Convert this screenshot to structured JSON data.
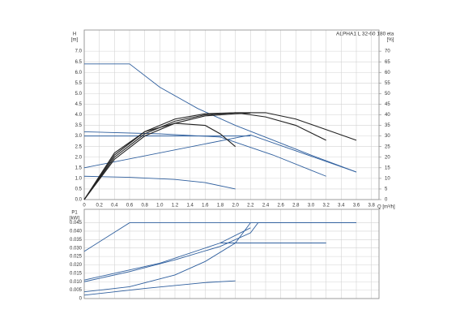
{
  "chart_data": [
    {
      "type": "line",
      "title": "ALPHA1 L 32-60 180",
      "y_label": "H",
      "y_unit": "[m]",
      "y2_label": "eta",
      "y2_unit": "[%]",
      "x_label": "Q [m³/h]",
      "xlim": [
        0,
        3.9
      ],
      "xticks": [
        {
          "value": 0,
          "label": "0"
        },
        0.2,
        0.4,
        0.6,
        0.8,
        {
          "value": 1,
          "label": "1.0"
        },
        1.2,
        1.4,
        1.6,
        1.8,
        {
          "value": 2,
          "label": "2.0"
        },
        2.2,
        2.4,
        2.6,
        2.8,
        {
          "value": 3,
          "label": "3.0"
        },
        3.2,
        3.4,
        3.6,
        3.8
      ],
      "ylim": [
        0,
        8
      ],
      "yticks": [
        {
          "value": 0,
          "label": "0.0"
        },
        0.5,
        {
          "value": 1,
          "label": "1.0"
        },
        1.5,
        {
          "value": 2,
          "label": "2.0"
        },
        2.5,
        {
          "value": 3,
          "label": "3.0"
        },
        3.5,
        {
          "value": 4,
          "label": "4.0"
        },
        4.5,
        {
          "value": 5,
          "label": "5.0"
        },
        5.5,
        {
          "value": 6,
          "label": "6.0"
        },
        6.5,
        {
          "value": 7,
          "label": "7.0"
        }
      ],
      "y2lim": [
        0,
        80
      ],
      "y2ticks": [
        0,
        5,
        10,
        15,
        20,
        25,
        30,
        35,
        40,
        45,
        50,
        55,
        60,
        65,
        70
      ],
      "grid": true,
      "series": [
        {
          "color": "#2f5f9e",
          "x": [
            0,
            0.6,
            1.0,
            1.5,
            2.0,
            2.5,
            3.0,
            3.6
          ],
          "values": [
            6.4,
            6.4,
            5.3,
            4.3,
            3.5,
            2.8,
            2.1,
            1.3
          ]
        },
        {
          "color": "#2f5f9e",
          "x": [
            0,
            1.0,
            1.8,
            2.5,
            3.2
          ],
          "values": [
            3.2,
            3.1,
            2.95,
            2.1,
            1.1
          ]
        },
        {
          "color": "#2f5f9e",
          "x": [
            0,
            2.2
          ],
          "values": [
            3.0,
            3.0
          ]
        },
        {
          "color": "#2f5f9e",
          "x": [
            0,
            2.2,
            3.6
          ],
          "values": [
            1.5,
            3.05,
            1.3
          ]
        },
        {
          "color": "#2f5f9e",
          "x": [
            0,
            0.6,
            1.2,
            1.6,
            2.0
          ],
          "values": [
            1.1,
            1.05,
            0.95,
            0.8,
            0.5
          ]
        },
        {
          "color": "#222222",
          "axis": "y2",
          "x": [
            0,
            0.4,
            0.8,
            1.2,
            1.6,
            2.0,
            2.4,
            2.8,
            3.2,
            3.6
          ],
          "values": [
            0,
            20,
            31,
            37,
            40,
            41,
            41,
            38,
            33,
            28
          ]
        },
        {
          "color": "#222222",
          "axis": "y2",
          "x": [
            0,
            0.4,
            0.8,
            1.2,
            1.6,
            2.0,
            2.4,
            2.8,
            3.2
          ],
          "values": [
            0,
            21,
            32,
            38,
            40.5,
            41,
            39,
            35,
            28
          ]
        },
        {
          "color": "#222222",
          "axis": "y2",
          "x": [
            0,
            0.4,
            0.8,
            1.2,
            1.6,
            2.0,
            2.2
          ],
          "values": [
            0,
            19,
            30,
            36,
            39.5,
            40.5,
            40.8
          ]
        },
        {
          "color": "#222222",
          "axis": "y2",
          "x": [
            0,
            0.4,
            0.8,
            1.2,
            1.6,
            1.8,
            2.0
          ],
          "values": [
            0,
            22,
            32,
            36,
            35,
            31,
            25
          ]
        }
      ]
    },
    {
      "type": "line",
      "y_label": "P1",
      "y_unit": "[kW]",
      "xlim": [
        0,
        3.9
      ],
      "ylim": [
        0,
        0.053
      ],
      "yticks": [
        0,
        0.005,
        {
          "value": 0.01,
          "label": "0.010"
        },
        0.015,
        {
          "value": 0.02,
          "label": "0.020"
        },
        0.025,
        {
          "value": 0.03,
          "label": "0.030"
        },
        0.035,
        {
          "value": 0.04,
          "label": "0.040"
        },
        0.045
      ],
      "grid": true,
      "series": [
        {
          "color": "#2f5f9e",
          "x": [
            0,
            0.6,
            3.6
          ],
          "values": [
            0.028,
            0.045,
            0.045
          ]
        },
        {
          "color": "#2f5f9e",
          "x": [
            0,
            0.6,
            1.2,
            1.8,
            2.2,
            2.3,
            3.6
          ],
          "values": [
            0.01,
            0.016,
            0.023,
            0.031,
            0.039,
            0.045,
            0.045
          ]
        },
        {
          "color": "#2f5f9e",
          "x": [
            0,
            1.0,
            1.8,
            2.2
          ],
          "values": [
            0.011,
            0.021,
            0.033,
            0.042
          ]
        },
        {
          "color": "#2f5f9e",
          "x": [
            0,
            0.6,
            1.2,
            1.6,
            2.0,
            2.2
          ],
          "values": [
            0.004,
            0.007,
            0.014,
            0.022,
            0.033,
            0.045
          ]
        },
        {
          "color": "#2f5f9e",
          "x": [
            1.8,
            3.2
          ],
          "values": [
            0.033,
            0.033
          ]
        },
        {
          "color": "#2f5f9e",
          "x": [
            0,
            0.8,
            1.6,
            2.0
          ],
          "values": [
            0.002,
            0.006,
            0.0095,
            0.0105
          ]
        }
      ]
    }
  ]
}
